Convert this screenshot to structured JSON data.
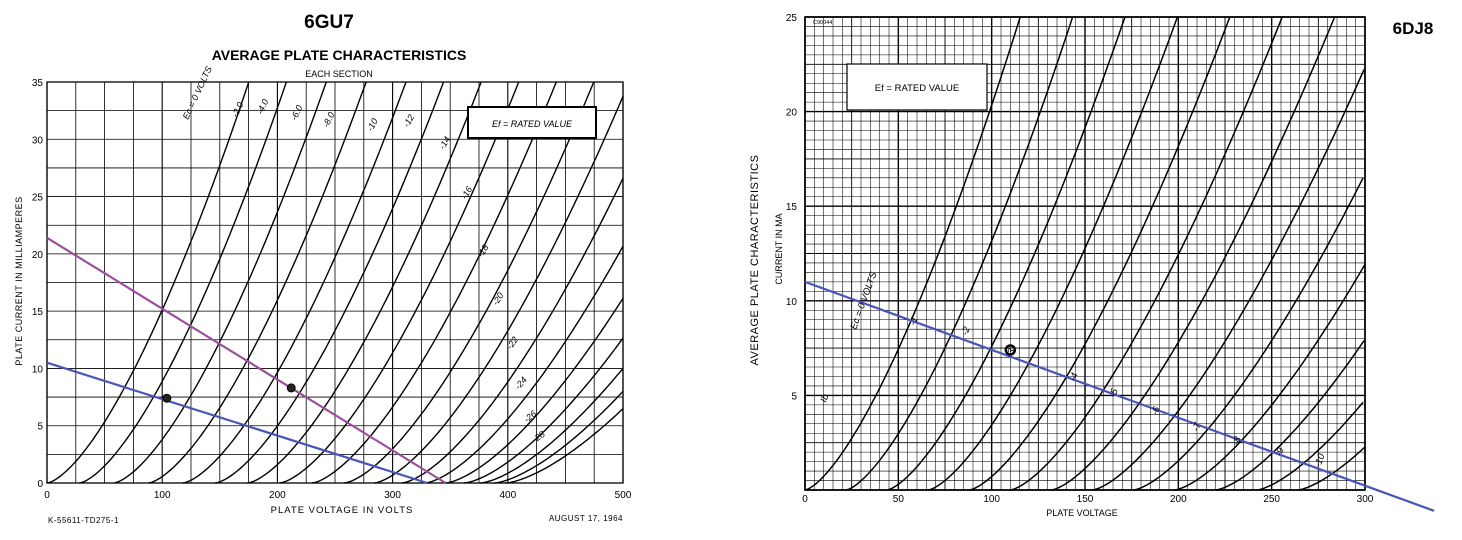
{
  "chart_data": [
    {
      "type": "line",
      "title": "6GU7",
      "subtitle": "AVERAGE PLATE CHARACTERISTICS",
      "subtitle2": "EACH SECTION",
      "xlabel": "PLATE VOLTAGE IN VOLTS",
      "ylabel": "PLATE CURRENT IN MILLIAMPERES",
      "xlim": [
        0,
        500
      ],
      "ylim": [
        0,
        35
      ],
      "x_ticks": [
        "0",
        "100",
        "200",
        "300",
        "400",
        "500"
      ],
      "y_ticks": [
        "0",
        "5",
        "10",
        "15",
        "20",
        "25",
        "30",
        "35"
      ],
      "grid": true,
      "legend_box": "Ef = RATED VALUE",
      "footer_left": "K-55611-TD275-1",
      "footer_right": "AUGUST 17, 1964",
      "curve_labels": [
        "Ec = 0 VOLTS",
        "-2.0",
        "-4.0",
        "-6.0",
        "-8.0",
        "-10",
        "-12",
        "-14",
        "-16",
        "-18",
        "-20",
        "-22",
        "-24",
        "-26",
        "-28"
      ],
      "curve_grid_volts": [
        0,
        -2,
        -4,
        -6,
        -8,
        -10,
        -12,
        -14,
        -16,
        -18,
        -20,
        -22,
        -24,
        -26,
        -28
      ],
      "curves_extra": [
        {
          "offset_v": 0,
          "slope_v": 76
        },
        {
          "offset_v": 28,
          "slope_v": 78
        },
        {
          "offset_v": 58,
          "slope_v": 80
        }
      ],
      "curve_params": [
        {
          "offset_v": 88,
          "slope_v": 82
        },
        {
          "offset_v": 118,
          "slope_v": 84
        },
        {
          "offset_v": 146,
          "slope_v": 86
        },
        {
          "offset_v": 174,
          "slope_v": 88
        },
        {
          "offset_v": 202,
          "slope_v": 90
        },
        {
          "offset_v": 230,
          "slope_v": 92
        },
        {
          "offset_v": 258,
          "slope_v": 94
        },
        {
          "offset_v": 284,
          "slope_v": 96
        },
        {
          "offset_v": 308,
          "slope_v": 100
        },
        {
          "offset_v": 328,
          "slope_v": 106
        },
        {
          "offset_v": 346,
          "slope_v": 112
        },
        {
          "offset_v": 362,
          "slope_v": 118
        },
        {
          "offset_v": 376,
          "slope_v": 124
        },
        {
          "offset_v": 388,
          "slope_v": 130
        },
        {
          "offset_v": 398,
          "slope_v": 136
        }
      ],
      "load_lines": [
        {
          "color": "#9b4f9b",
          "points": [
            [
              0,
              21.4
            ],
            [
              346,
              0
            ]
          ]
        },
        {
          "color": "#4a55b8",
          "points": [
            [
              0,
              10.5
            ],
            [
              330,
              0
            ]
          ]
        }
      ],
      "operating_points": [
        [
          104,
          7.4
        ],
        [
          212,
          8.3
        ]
      ],
      "series": [
        {
          "values": [
            [
              0,
              21.4
            ],
            [
              346,
              0
            ]
          ]
        },
        {
          "values": [
            [
              0,
              10.5
            ],
            [
              330,
              0
            ]
          ]
        }
      ]
    },
    {
      "type": "line",
      "title": "6DJ8",
      "xlabel": "PLATE VOLTAGE",
      "ylabel": "CURRENT IN MA",
      "ylabel_outer": "AVERAGE PLATE CHARACTERISTICS",
      "xlim": [
        0,
        300
      ],
      "ylim": [
        0,
        25
      ],
      "x_ticks": [
        "0",
        "50",
        "100",
        "150",
        "200",
        "250",
        "300"
      ],
      "y_ticks": [
        "5",
        "10",
        "15",
        "20",
        "25"
      ],
      "grid": true,
      "legend_box": "Ef = RATED VALUE",
      "corner_code": "C90044",
      "curve_labels": [
        "Ib",
        "Ec = 0 VOLTS",
        "-1",
        "-2",
        "-3",
        "-4",
        "-5",
        "-6",
        "-7",
        "-8",
        "-9",
        "-10"
      ],
      "curve_params": [
        {
          "offset_v": 0,
          "slope_v": 38
        },
        {
          "offset_v": 22,
          "slope_v": 40
        },
        {
          "offset_v": 44,
          "slope_v": 42
        },
        {
          "offset_v": 66,
          "slope_v": 44
        },
        {
          "offset_v": 88,
          "slope_v": 46
        },
        {
          "offset_v": 110,
          "slope_v": 48
        },
        {
          "offset_v": 132,
          "slope_v": 50
        },
        {
          "offset_v": 154,
          "slope_v": 52
        },
        {
          "offset_v": 176,
          "slope_v": 54
        },
        {
          "offset_v": 198,
          "slope_v": 56
        },
        {
          "offset_v": 220,
          "slope_v": 58
        },
        {
          "offset_v": 242,
          "slope_v": 60
        },
        {
          "offset_v": 264,
          "slope_v": 62
        }
      ],
      "load_lines": [
        {
          "color": "#4a55b8",
          "points": [
            [
              0,
              11
            ],
            [
              337,
              -1.1
            ]
          ]
        }
      ],
      "operating_points": [
        [
          110,
          7.4
        ]
      ],
      "series": [
        {
          "values": [
            [
              0,
              11
            ],
            [
              337,
              -1.1
            ]
          ]
        }
      ]
    }
  ]
}
